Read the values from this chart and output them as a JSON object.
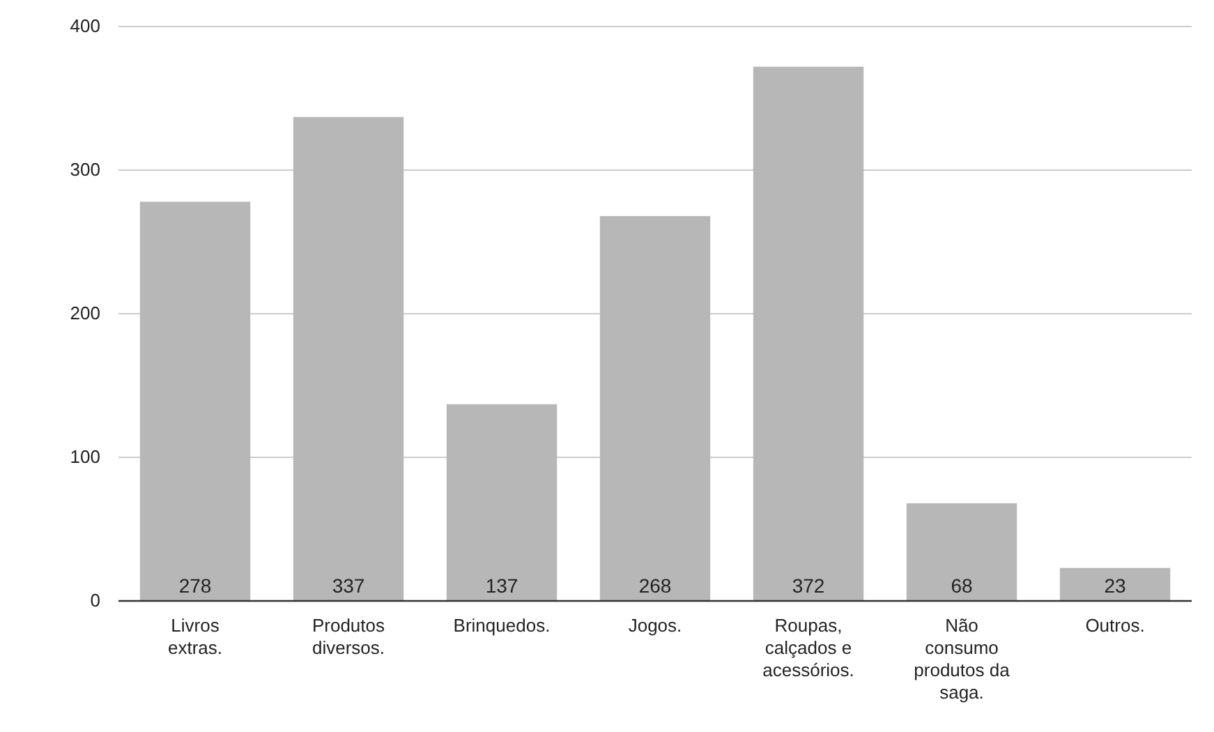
{
  "chart_data": {
    "type": "bar",
    "categories": [
      "Livros extras.",
      "Produtos diversos.",
      "Brinquedos.",
      "Jogos.",
      "Roupas, calçados e acessórios.",
      "Não consumo produtos da saga.",
      "Outros."
    ],
    "values": [
      278,
      337,
      137,
      268,
      372,
      68,
      23
    ],
    "color": "#b7b7b7",
    "ylim": [
      0,
      400
    ],
    "yticks": [
      0,
      100,
      200,
      300,
      400
    ],
    "grid": "y",
    "data_labels": true
  }
}
